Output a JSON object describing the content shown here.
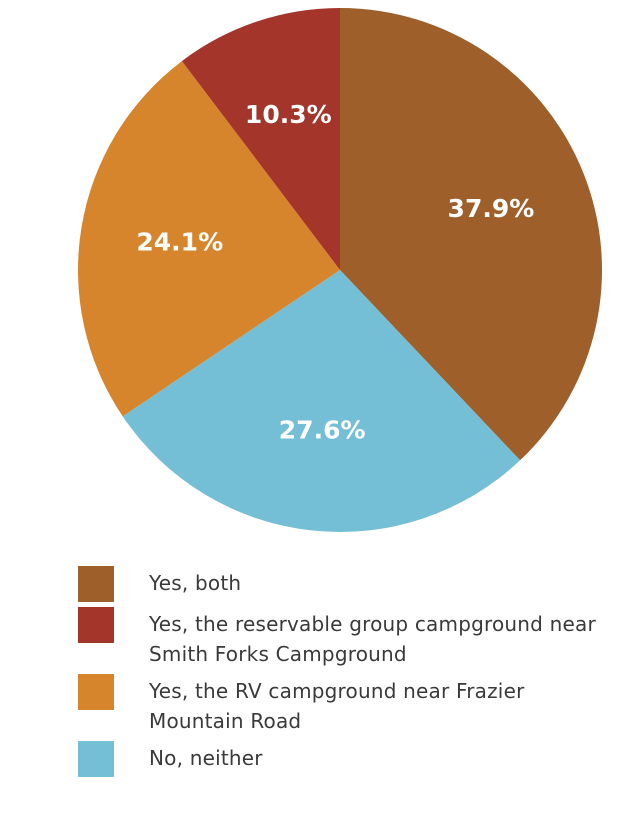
{
  "chart_data": {
    "type": "pie",
    "title": "",
    "start_angle_deg": 0,
    "direction": "clockwise",
    "slices": [
      {
        "label": "Yes, both",
        "value": 37.9,
        "display": "37.9%",
        "color": "#9e5f2a"
      },
      {
        "label": "No, neither",
        "value": 27.6,
        "display": "27.6%",
        "color": "#74bfd6"
      },
      {
        "label": "Yes, the RV campground near Frazier Mountain Road",
        "value": 24.1,
        "display": "24.1%",
        "color": "#d6852d"
      },
      {
        "label": "Yes, the reservable group campground near Smith Forks Campground",
        "value": 10.3,
        "display": "10.3%",
        "color": "#a3352a"
      }
    ],
    "legend_placement": "bottom",
    "legend": [
      {
        "label": "Yes, both",
        "color": "#9e5f2a"
      },
      {
        "label": "Yes, the reservable group campground near Smith Forks Campground",
        "color": "#a3352a"
      },
      {
        "label": "Yes, the RV campground near Frazier Mountain Road",
        "color": "#d6852d"
      },
      {
        "label": "No, neither",
        "color": "#74bfd6"
      }
    ]
  }
}
